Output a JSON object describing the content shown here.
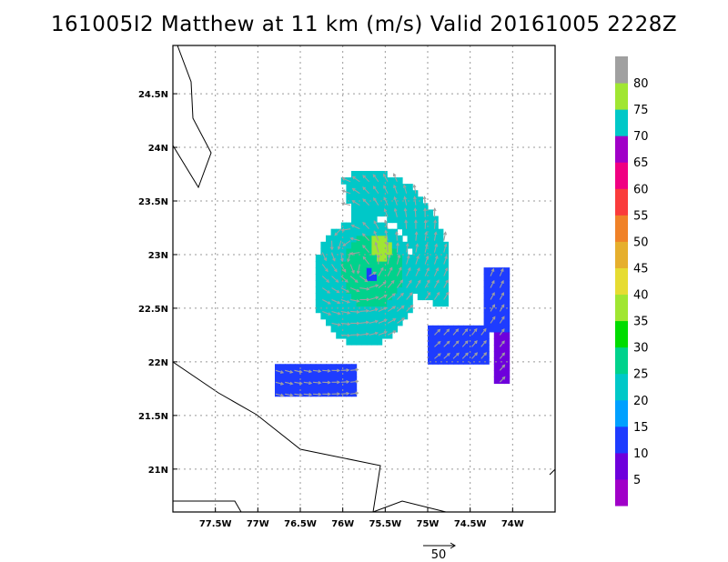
{
  "chart_data": {
    "type": "heatmap",
    "title": "161005I2 Matthew at 11 km (m/s) Valid 20161005 2228Z",
    "xlim": [
      -78,
      -73.5
    ],
    "ylim": [
      20.6,
      24.95
    ],
    "grid": true,
    "x_ticks": [
      {
        "value": -77.5,
        "label": "77.5W"
      },
      {
        "value": -77,
        "label": "77W"
      },
      {
        "value": -76.5,
        "label": "76.5W"
      },
      {
        "value": -76,
        "label": "76W"
      },
      {
        "value": -75.5,
        "label": "75.5W"
      },
      {
        "value": -75,
        "label": "75W"
      },
      {
        "value": -74.5,
        "label": "74.5W"
      },
      {
        "value": -74,
        "label": "74W"
      }
    ],
    "y_ticks": [
      {
        "value": 21,
        "label": "21N"
      },
      {
        "value": 21.5,
        "label": "21.5N"
      },
      {
        "value": 22,
        "label": "22N"
      },
      {
        "value": 22.5,
        "label": "22.5N"
      },
      {
        "value": 23,
        "label": "23N"
      },
      {
        "value": 23.5,
        "label": "23.5N"
      },
      {
        "value": 24,
        "label": "24N"
      },
      {
        "value": 24.5,
        "label": "24.5N"
      }
    ],
    "colorbar": {
      "labels": [
        "5",
        "10",
        "15",
        "20",
        "25",
        "30",
        "35",
        "40",
        "45",
        "50",
        "55",
        "60",
        "65",
        "70",
        "75",
        "80"
      ],
      "bins": [
        {
          "min": 0,
          "max": 5,
          "color": "#a000c8"
        },
        {
          "min": 5,
          "max": 10,
          "color": "#6e00dc"
        },
        {
          "min": 10,
          "max": 15,
          "color": "#1e3cff"
        },
        {
          "min": 15,
          "max": 20,
          "color": "#00a0ff"
        },
        {
          "min": 20,
          "max": 25,
          "color": "#00c8c8"
        },
        {
          "min": 25,
          "max": 30,
          "color": "#00d28c"
        },
        {
          "min": 30,
          "max": 35,
          "color": "#00dc00"
        },
        {
          "min": 35,
          "max": 40,
          "color": "#a0e632"
        },
        {
          "min": 40,
          "max": 45,
          "color": "#e6dc32"
        },
        {
          "min": 45,
          "max": 50,
          "color": "#e6af2d"
        },
        {
          "min": 50,
          "max": 55,
          "color": "#f08228"
        },
        {
          "min": 55,
          "max": 60,
          "color": "#fa3c3c"
        },
        {
          "min": 60,
          "max": 65,
          "color": "#f00082"
        },
        {
          "min": 65,
          "max": 70,
          "color": "#a000c8"
        },
        {
          "min": 70,
          "max": 75,
          "color": "#00c8c8"
        },
        {
          "min": 75,
          "max": 80,
          "color": "#a0e632"
        },
        {
          "min": 80,
          "max": 85,
          "color": "#a0a0a0"
        }
      ]
    },
    "wind_field": {
      "center": [
        -75.7,
        22.82
      ],
      "regions": [
        {
          "description": "eye",
          "center": [
            -75.68,
            22.8
          ],
          "radius_deg": 0.07,
          "speed": 12
        },
        {
          "description": "max wind",
          "center": [
            -75.55,
            23.08
          ],
          "radius_deg": 0.12,
          "speed": 36
        },
        {
          "description": "inner core",
          "center": [
            -75.65,
            22.85
          ],
          "radius_deg": 0.35,
          "speed": 27
        },
        {
          "description": "main ring",
          "center": [
            -75.75,
            22.75
          ],
          "radius_deg": 0.6,
          "speed": 22
        }
      ],
      "bands": [
        {
          "lon": [
            -76.8,
            -75.85
          ],
          "lat": [
            21.65,
            21.95
          ],
          "speed": 12
        },
        {
          "lon": [
            -75.0,
            -74.3
          ],
          "lat": [
            21.95,
            22.35
          ],
          "speed": 12
        },
        {
          "lon": [
            -74.35,
            -74.05
          ],
          "lat": [
            22.3,
            22.9
          ],
          "speed": 12
        },
        {
          "lon": [
            -74.2,
            -74.05
          ],
          "lat": [
            21.8,
            22.45
          ],
          "speed": 7
        }
      ]
    },
    "vector_scale": {
      "label": "50",
      "value": 50
    }
  }
}
